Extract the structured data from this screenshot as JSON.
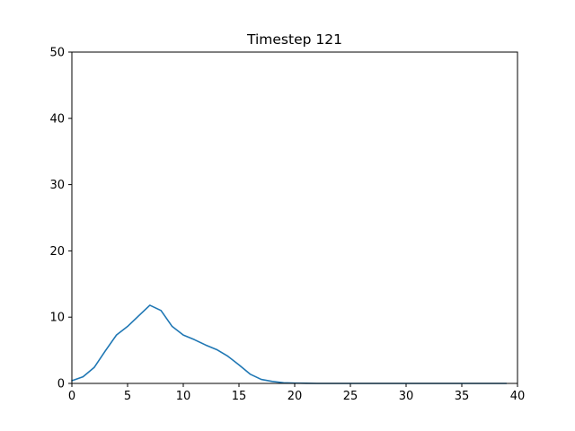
{
  "chart_data": {
    "type": "line",
    "title": "Timestep 121",
    "xlabel": "",
    "ylabel": "",
    "xlim": [
      0,
      40
    ],
    "ylim": [
      0,
      50
    ],
    "xticks": [
      0,
      5,
      10,
      15,
      20,
      25,
      30,
      35,
      40
    ],
    "yticks": [
      0,
      10,
      20,
      30,
      40,
      50
    ],
    "grid": false,
    "series": [
      {
        "color": "#1f77b4",
        "x": [
          0,
          1,
          2,
          3,
          4,
          5,
          6,
          7,
          8,
          9,
          10,
          11,
          12,
          13,
          14,
          15,
          16,
          17,
          18,
          19,
          20,
          21,
          22,
          23,
          24,
          25,
          26,
          27,
          28,
          29,
          30,
          31,
          32,
          33,
          34,
          35,
          36,
          37,
          38,
          39
        ],
        "y": [
          0.4,
          1.0,
          2.4,
          4.9,
          7.3,
          8.6,
          10.2,
          11.8,
          11.0,
          8.6,
          7.3,
          6.6,
          5.8,
          5.1,
          4.1,
          2.8,
          1.4,
          0.6,
          0.3,
          0.1,
          0.05,
          0.02,
          0,
          0,
          0,
          0,
          0,
          0,
          0,
          0,
          0,
          0,
          0,
          0,
          0,
          0,
          0,
          0,
          0,
          0
        ]
      }
    ]
  }
}
